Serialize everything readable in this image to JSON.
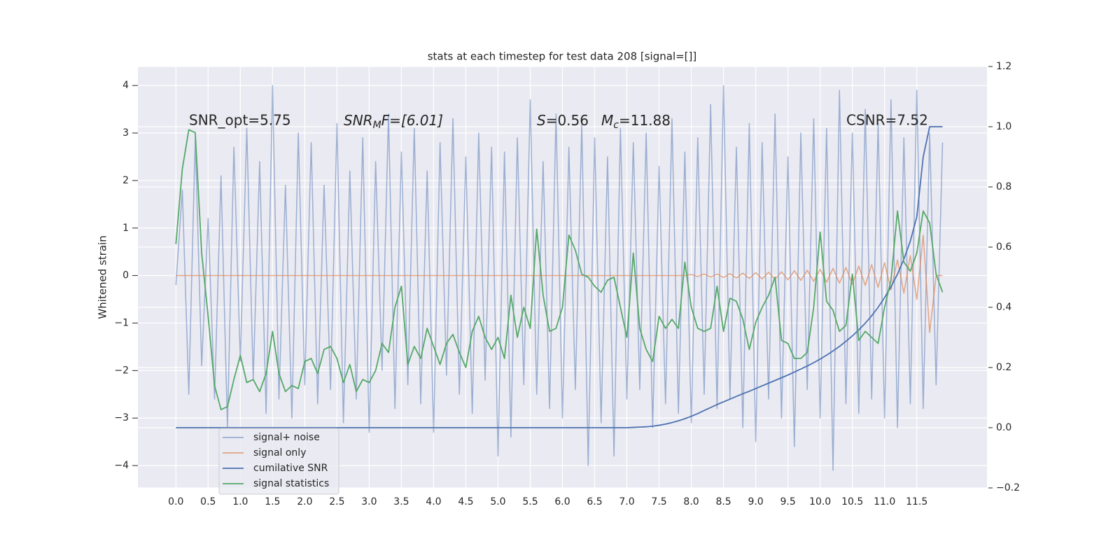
{
  "chart_data": {
    "type": "line",
    "title": "stats at each timestep for test data 208 [signal=[]]",
    "y_label": "Whitened strain",
    "annotations": {
      "snr_opt": "SNR_opt=5.75",
      "snr_mf": {
        "main": "SNR",
        "sub": "M",
        "rest": "F=[6.01]"
      },
      "s": {
        "main": "S",
        "rest": "=0.56"
      },
      "mc": {
        "main": "M",
        "sub": "c",
        "rest": "=11.88"
      },
      "csnr": "CSNR=7.52"
    },
    "grid": true,
    "legend": "lower left",
    "xlim": [
      -0.59,
      12.59
    ],
    "ylim": [
      -4.47,
      4.4
    ],
    "y2lim": [
      -0.2,
      1.2
    ],
    "xticks": [
      {
        "value": 0,
        "label": "0.0"
      },
      0.5,
      {
        "value": 1,
        "label": "1.0"
      },
      1.5,
      {
        "value": 2,
        "label": "2.0"
      },
      2.5,
      {
        "value": 3,
        "label": "3.0"
      },
      3.5,
      {
        "value": 4,
        "label": "4.0"
      },
      4.5,
      {
        "value": 5,
        "label": "5.0"
      },
      5.5,
      {
        "value": 6,
        "label": "6.0"
      },
      6.5,
      {
        "value": 7,
        "label": "7.0"
      },
      7.5,
      {
        "value": 8,
        "label": "8.0"
      },
      8.5,
      {
        "value": 9,
        "label": "9.0"
      },
      9.5,
      {
        "value": 10,
        "label": "10.0"
      },
      10.5,
      {
        "value": 11,
        "label": "11.0"
      },
      11.5
    ],
    "yticks": [
      {
        "value": -4,
        "label": "−4"
      },
      {
        "value": -3,
        "label": "−3"
      },
      {
        "value": -2,
        "label": "−2"
      },
      {
        "value": -1,
        "label": "−1"
      },
      0,
      1,
      2,
      3,
      4
    ],
    "y2ticks": [
      {
        "value": -0.2,
        "label": "−0.2"
      },
      {
        "value": 0,
        "label": "0.0"
      },
      0.2,
      0.4,
      0.6,
      0.8,
      {
        "value": 1,
        "label": "1.0"
      },
      1.2
    ],
    "x": [
      0.0,
      0.1,
      0.2,
      0.3,
      0.4,
      0.5,
      0.6,
      0.7,
      0.8,
      0.9,
      1.0,
      1.1,
      1.2,
      1.3,
      1.4,
      1.5,
      1.6,
      1.7,
      1.8,
      1.9,
      2.0,
      2.1,
      2.2,
      2.3,
      2.4,
      2.5,
      2.6,
      2.7,
      2.8,
      2.9,
      3.0,
      3.1,
      3.2,
      3.3,
      3.4,
      3.5,
      3.6,
      3.7,
      3.8,
      3.9,
      4.0,
      4.1,
      4.2,
      4.3,
      4.4,
      4.5,
      4.6,
      4.7,
      4.8,
      4.9,
      5.0,
      5.1,
      5.2,
      5.3,
      5.4,
      5.5,
      5.6,
      5.7,
      5.8,
      5.9,
      6.0,
      6.1,
      6.2,
      6.3,
      6.4,
      6.5,
      6.6,
      6.7,
      6.8,
      6.9,
      7.0,
      7.1,
      7.2,
      7.3,
      7.4,
      7.5,
      7.6,
      7.7,
      7.8,
      7.9,
      8.0,
      8.1,
      8.2,
      8.3,
      8.4,
      8.5,
      8.6,
      8.7,
      8.8,
      8.9,
      9.0,
      9.1,
      9.2,
      9.3,
      9.4,
      9.5,
      9.6,
      9.7,
      9.8,
      9.9,
      10.0,
      10.1,
      10.2,
      10.3,
      10.4,
      10.5,
      10.6,
      10.7,
      10.8,
      10.9,
      11.0,
      11.1,
      11.2,
      11.3,
      11.4,
      11.5,
      11.6,
      11.7,
      11.8,
      11.9
    ],
    "series": [
      {
        "name": "signal+ noise",
        "color": "#4c72b0",
        "values": [
          -0.2,
          1.8,
          -2.5,
          2.9,
          -1.9,
          1.2,
          -2.6,
          2.1,
          -3.2,
          2.7,
          -1.8,
          3.1,
          -2.2,
          2.4,
          -2.9,
          4.0,
          -2.6,
          1.9,
          -3.0,
          3.0,
          -2.3,
          2.8,
          -2.7,
          1.9,
          -2.4,
          3.2,
          -3.1,
          2.2,
          -2.6,
          2.9,
          -3.3,
          2.4,
          -2.0,
          3.4,
          -2.8,
          2.6,
          -2.3,
          3.1,
          -2.7,
          2.2,
          -3.3,
          2.8,
          -2.1,
          3.3,
          -2.5,
          2.5,
          -2.9,
          3.0,
          -2.2,
          2.7,
          -3.8,
          2.6,
          -3.4,
          2.9,
          -2.3,
          3.7,
          -2.5,
          2.4,
          -2.8,
          3.4,
          -3.0,
          2.7,
          -2.4,
          3.2,
          -4.0,
          2.9,
          -3.1,
          2.5,
          -3.8,
          3.1,
          -2.6,
          2.8,
          -2.4,
          3.0,
          -3.2,
          2.3,
          -2.7,
          3.3,
          -2.9,
          2.6,
          -3.1,
          2.9,
          -2.5,
          3.6,
          -2.8,
          4.0,
          -2.6,
          2.7,
          -3.2,
          3.2,
          -3.5,
          2.8,
          -2.6,
          3.4,
          -3.0,
          2.5,
          -3.6,
          3.0,
          -2.4,
          3.3,
          -3.0,
          3.1,
          -4.1,
          3.9,
          -2.7,
          3.0,
          -2.9,
          3.5,
          -2.6,
          3.2,
          -3.0,
          3.7,
          -3.2,
          2.9,
          -2.7,
          3.9,
          -2.8,
          3.0,
          -2.3,
          2.8
        ]
      },
      {
        "name": "signal only",
        "color": "#dd8452",
        "values": [
          0,
          0,
          0,
          0,
          0,
          0,
          0,
          0,
          0,
          0,
          0,
          0,
          0,
          0,
          0,
          0,
          0,
          0,
          0,
          0,
          0,
          0,
          0,
          0,
          0,
          0,
          0,
          0,
          0,
          0,
          0,
          0,
          0,
          0,
          0,
          0,
          0,
          0,
          0,
          0,
          0,
          0,
          0,
          0,
          0,
          0,
          0,
          0,
          0,
          0,
          0,
          0,
          0,
          0,
          0,
          0,
          0,
          0,
          0,
          0,
          0,
          0,
          0,
          0,
          0,
          0,
          0,
          0,
          0,
          0,
          0,
          0,
          0,
          0,
          0,
          0,
          0,
          0,
          0,
          0,
          0.02,
          -0.02,
          0.03,
          -0.03,
          0.03,
          -0.04,
          0.04,
          -0.05,
          0.05,
          -0.06,
          0.06,
          -0.07,
          0.07,
          -0.08,
          0.08,
          -0.09,
          0.1,
          -0.1,
          0.11,
          -0.12,
          0.13,
          -0.14,
          0.15,
          -0.16,
          0.17,
          -0.18,
          0.2,
          -0.21,
          0.23,
          -0.25,
          0.27,
          -0.3,
          0.33,
          -0.37,
          0.42,
          -0.5,
          0.85,
          -1.2,
          0,
          0
        ]
      },
      {
        "name": "cumilative SNR",
        "color": "#4c72b0",
        "axis": "y2",
        "values": [
          0,
          0,
          0,
          0,
          0,
          0,
          0,
          0,
          0,
          0,
          0,
          0,
          0,
          0,
          0,
          0,
          0,
          0,
          0,
          0,
          0,
          0,
          0,
          0,
          0,
          0,
          0,
          0,
          0,
          0,
          0,
          0,
          0,
          0,
          0,
          0,
          0,
          0,
          0,
          0,
          0,
          0,
          0,
          0,
          0,
          0,
          0,
          0,
          0,
          0,
          0,
          0,
          0,
          0,
          0,
          0,
          0,
          0,
          0,
          0,
          0,
          0,
          0,
          0,
          0,
          0,
          0,
          0,
          0,
          0,
          0,
          0.001,
          0.002,
          0.003,
          0.005,
          0.008,
          0.012,
          0.017,
          0.023,
          0.03,
          0.038,
          0.047,
          0.057,
          0.067,
          0.077,
          0.086,
          0.095,
          0.104,
          0.113,
          0.121,
          0.13,
          0.139,
          0.148,
          0.157,
          0.166,
          0.175,
          0.185,
          0.195,
          0.205,
          0.216,
          0.228,
          0.241,
          0.255,
          0.27,
          0.287,
          0.305,
          0.325,
          0.347,
          0.372,
          0.4,
          0.432,
          0.468,
          0.51,
          0.56,
          0.62,
          0.7,
          0.9,
          1.0,
          1.0,
          1.0
        ]
      },
      {
        "name": "signal statistics",
        "color": "#55a868",
        "axis": "y2",
        "values": [
          0.61,
          0.86,
          0.99,
          0.98,
          0.58,
          0.37,
          0.14,
          0.06,
          0.07,
          0.16,
          0.24,
          0.15,
          0.16,
          0.12,
          0.18,
          0.32,
          0.18,
          0.12,
          0.14,
          0.13,
          0.22,
          0.23,
          0.18,
          0.26,
          0.27,
          0.23,
          0.15,
          0.21,
          0.12,
          0.16,
          0.15,
          0.19,
          0.28,
          0.25,
          0.4,
          0.47,
          0.21,
          0.27,
          0.23,
          0.33,
          0.27,
          0.21,
          0.28,
          0.31,
          0.25,
          0.2,
          0.32,
          0.37,
          0.3,
          0.26,
          0.3,
          0.23,
          0.44,
          0.3,
          0.4,
          0.33,
          0.66,
          0.44,
          0.32,
          0.33,
          0.4,
          0.64,
          0.59,
          0.51,
          0.5,
          0.47,
          0.45,
          0.49,
          0.5,
          0.4,
          0.3,
          0.58,
          0.33,
          0.26,
          0.22,
          0.37,
          0.33,
          0.36,
          0.33,
          0.55,
          0.4,
          0.33,
          0.32,
          0.33,
          0.47,
          0.32,
          0.43,
          0.42,
          0.36,
          0.26,
          0.35,
          0.4,
          0.44,
          0.5,
          0.29,
          0.28,
          0.23,
          0.23,
          0.25,
          0.4,
          0.65,
          0.42,
          0.39,
          0.32,
          0.34,
          0.51,
          0.29,
          0.32,
          0.3,
          0.28,
          0.4,
          0.49,
          0.72,
          0.55,
          0.52,
          0.58,
          0.72,
          0.68,
          0.51,
          0.45
        ]
      }
    ]
  }
}
